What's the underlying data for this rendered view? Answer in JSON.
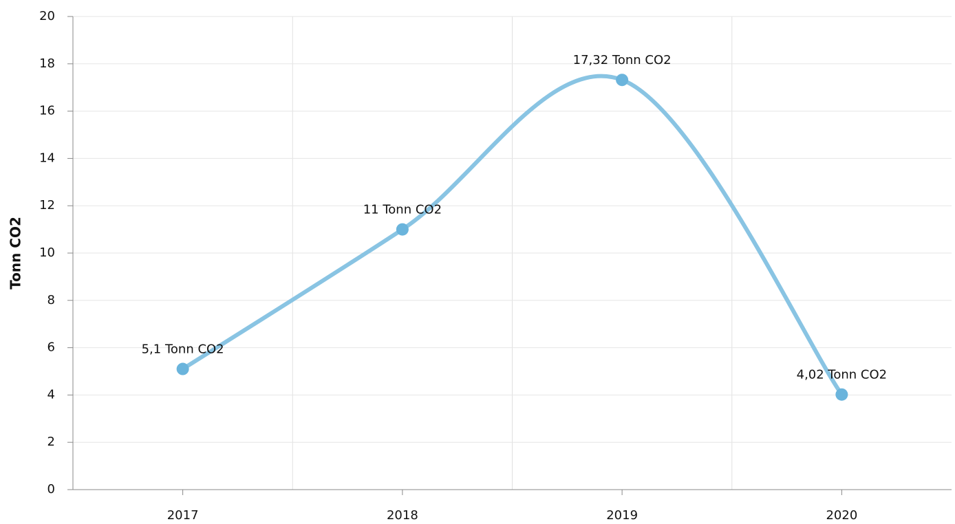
{
  "chart_data": {
    "type": "line",
    "y_label": "Tonn CO2",
    "categories": [
      "2017",
      "2018",
      "2019",
      "2020"
    ],
    "series": [
      {
        "name": "Tonn CO2",
        "color": "#89c4e3",
        "marker_color": "#6ab4dc",
        "values": [
          5.1,
          11,
          17.32,
          4.02
        ],
        "value_labels": [
          "5,1 Tonn CO2",
          "11 Tonn CO2",
          "17,32 Tonn CO2",
          "4,02 Tonn CO2"
        ]
      }
    ],
    "ylim": [
      0,
      20
    ],
    "yticks": [
      0,
      2,
      4,
      6,
      8,
      10,
      12,
      14,
      16,
      18,
      20
    ],
    "grid": true,
    "smooth": true
  }
}
